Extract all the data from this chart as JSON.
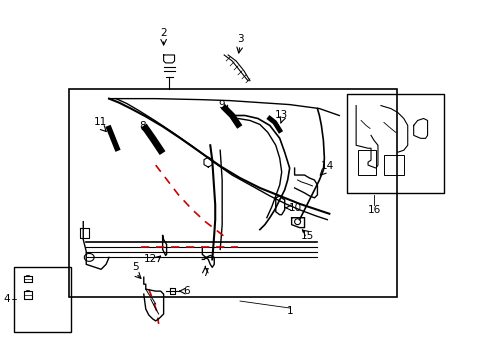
{
  "bg_color": "#ffffff",
  "line_color": "#000000",
  "red_dash_color": "#cc0000",
  "fig_width": 4.89,
  "fig_height": 3.6,
  "dpi": 100
}
